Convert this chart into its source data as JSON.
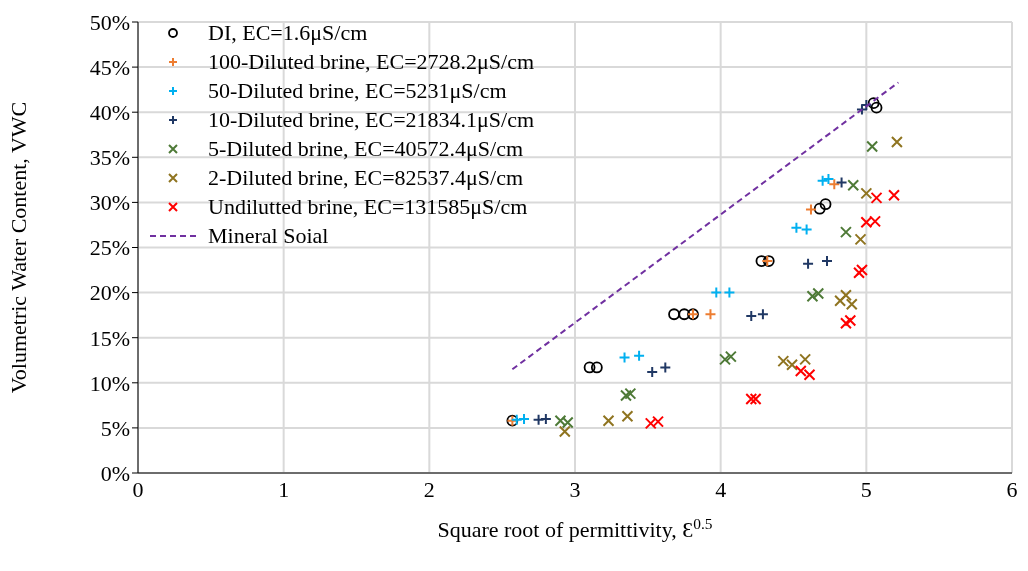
{
  "chart_data": {
    "type": "scatter",
    "xlabel": "Square root of permittivity, Ɛ$^{0.5}$",
    "ylabel": "Volumetric Water Content, VWC",
    "xlim": [
      0,
      6
    ],
    "xticks": [
      0,
      1,
      2,
      3,
      4,
      5,
      6
    ],
    "ylim": [
      0,
      50
    ],
    "yticks": [
      {
        "value": 0,
        "label": "0%"
      },
      {
        "value": 5,
        "label": "5%"
      },
      {
        "value": 10,
        "label": "10%"
      },
      {
        "value": 15,
        "label": "15%"
      },
      {
        "value": 20,
        "label": "20%"
      },
      {
        "value": 25,
        "label": "25%"
      },
      {
        "value": 30,
        "label": "30%"
      },
      {
        "value": 35,
        "label": "35%"
      },
      {
        "value": 40,
        "label": "40%"
      },
      {
        "value": 45,
        "label": "45%"
      },
      {
        "value": 50,
        "label": "50%"
      }
    ],
    "grid": true,
    "legend": "top left",
    "series": [
      {
        "name": "DI, EC=1.6μS/cm",
        "color": "#000000",
        "marker": "circle",
        "x": [
          2.57,
          3.1,
          3.15,
          3.68,
          3.75,
          3.81,
          4.28,
          4.33,
          4.68,
          4.72,
          5.05,
          5.07
        ],
        "values": [
          5.8,
          11.7,
          11.7,
          17.6,
          17.6,
          17.6,
          23.5,
          23.5,
          29.3,
          29.8,
          41,
          40.5
        ]
      },
      {
        "name": "100-Diluted brine, EC=2728.2μS/cm",
        "color": "#ed7d31",
        "marker": "cross",
        "x": [
          2.57,
          3.81,
          3.93,
          4.32,
          4.62,
          4.78
        ],
        "values": [
          5.8,
          17.6,
          17.6,
          23.5,
          29.2,
          32.0
        ]
      },
      {
        "name": "50-Diluted brine, EC=5231μS/cm",
        "color": "#00b0f0",
        "marker": "cross",
        "x": [
          2.6,
          2.65,
          3.34,
          3.44,
          3.97,
          4.06,
          4.52,
          4.59,
          4.7,
          4.74
        ],
        "values": [
          5.9,
          6,
          12.8,
          13,
          20,
          20,
          27.2,
          27,
          32.4,
          32.6
        ]
      },
      {
        "name": "10-Diluted brine, EC=21834.1μS/cm",
        "color": "#203864",
        "marker": "cross",
        "x": [
          2.75,
          2.8,
          3.53,
          3.62,
          4.21,
          4.29,
          4.6,
          4.73,
          4.83,
          4.97,
          5
        ],
        "values": [
          5.9,
          6,
          11.2,
          11.7,
          17.4,
          17.6,
          23.2,
          23.5,
          32.2,
          40.3,
          40.8
        ]
      },
      {
        "name": "5-Diluted brine, EC=40572.4μS/cm",
        "color": "#4e7a37",
        "marker": "x",
        "x": [
          2.9,
          2.95,
          3.35,
          3.38,
          4.03,
          4.07,
          4.63,
          4.67,
          4.86,
          4.91,
          5.04
        ],
        "values": [
          5.8,
          5.6,
          8.6,
          8.8,
          12.6,
          12.9,
          19.6,
          19.9,
          26.7,
          31.9,
          36.2
        ]
      },
      {
        "name": "2-Diluted brine, EC=82537.4μS/cm",
        "color": "#8f7420",
        "marker": "x",
        "x": [
          2.93,
          3.23,
          3.36,
          4.43,
          4.49,
          4.58,
          4.82,
          4.86,
          4.9,
          4.96,
          5,
          5.21
        ],
        "values": [
          4.6,
          5.8,
          6.3,
          12.4,
          12,
          12.6,
          19.1,
          19.7,
          18.7,
          25.9,
          31,
          36.7
        ]
      },
      {
        "name": "Undilutted brine, EC=131585μS/cm",
        "color": "#ff0000",
        "marker": "x",
        "x": [
          3.52,
          3.57,
          4.21,
          4.24,
          4.55,
          4.61,
          4.86,
          4.89,
          4.95,
          4.97,
          5,
          5.06,
          5.07,
          5.19
        ],
        "values": [
          5.5,
          5.7,
          8.2,
          8.2,
          11.3,
          10.9,
          16.6,
          16.9,
          22.2,
          22.5,
          27.8,
          27.9,
          30.5,
          30.8
        ]
      },
      {
        "name": "Mineral Soial",
        "type": "line",
        "color": "#7030a0",
        "line_style": "dashed",
        "marker": "none",
        "x": [
          2.57,
          5.22
        ],
        "values": [
          11.5,
          43.3
        ]
      }
    ]
  }
}
